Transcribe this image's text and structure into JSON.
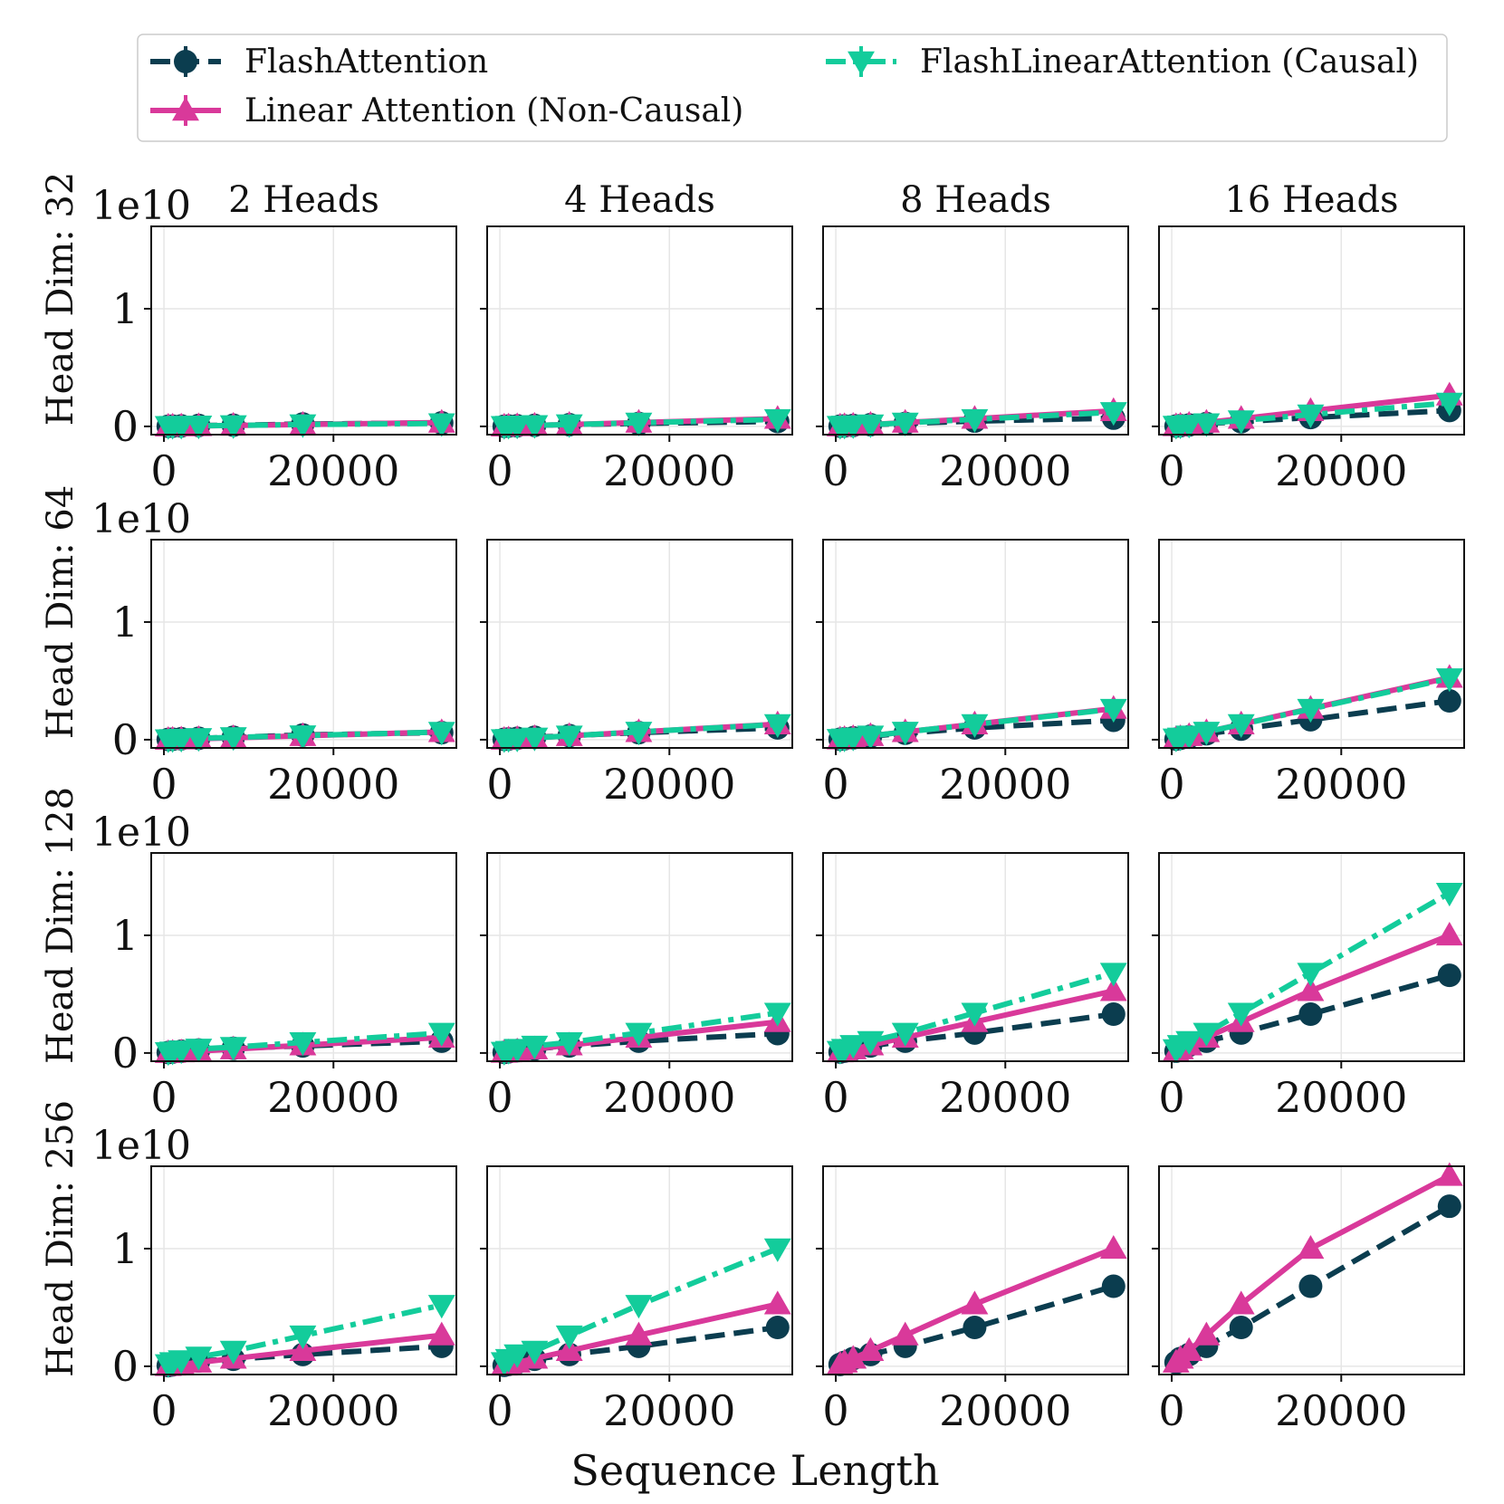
{
  "chart_data": {
    "type": "line",
    "layout": "4 rows x 4 columns of subplots",
    "xlabel": "Sequence Length",
    "y_scale_label": "1e10",
    "x_ticks": [
      0,
      20000
    ],
    "x_tick_labels": [
      "0",
      "20000"
    ],
    "y_ticks": [
      0,
      1
    ],
    "y_tick_labels": [
      "0",
      "1"
    ],
    "xlim": [
      -1500,
      34500
    ],
    "ylim": [
      -0.07,
      1.7
    ],
    "grid": true,
    "legend_position": "top",
    "col_titles": [
      "2 Heads",
      "4 Heads",
      "8 Heads",
      "16 Heads"
    ],
    "row_labels": [
      "Head Dim: 32",
      "Head Dim: 64",
      "Head Dim: 128",
      "Head Dim: 256"
    ],
    "x": [
      512,
      1024,
      2048,
      4096,
      8192,
      16384,
      32768
    ],
    "series": [
      {
        "key": "fa",
        "name": "FlashAttention",
        "color": "#0b3d4f",
        "marker": "circle",
        "dash": "dashed"
      },
      {
        "key": "la",
        "name": "Linear Attention (Non-Causal)",
        "color": "#d9399a",
        "marker": "triangle-up",
        "dash": "solid"
      },
      {
        "key": "fla",
        "name": "FlashLinearAttention (Causal)",
        "color": "#13cc9b",
        "marker": "triangle-down",
        "dash": "dashdot"
      }
    ],
    "panels": [
      [
        {
          "fa": [
            0.001,
            0.002,
            0.004,
            0.008,
            0.01,
            0.02,
            0.03
          ],
          "la": [
            0.0005,
            0.001,
            0.002,
            0.004,
            0.008,
            0.016,
            0.033
          ],
          "fla": [
            0.001,
            0.002,
            0.003,
            0.005,
            0.008,
            0.016,
            0.025
          ]
        },
        {
          "fa": [
            0.001,
            0.003,
            0.005,
            0.009,
            0.015,
            0.025,
            0.042
          ],
          "la": [
            0.001,
            0.002,
            0.004,
            0.008,
            0.016,
            0.033,
            0.066
          ],
          "fla": [
            0.001,
            0.003,
            0.005,
            0.009,
            0.016,
            0.03,
            0.06
          ]
        },
        {
          "fa": [
            0.002,
            0.004,
            0.008,
            0.015,
            0.025,
            0.045,
            0.07
          ],
          "la": [
            0.002,
            0.004,
            0.008,
            0.016,
            0.033,
            0.066,
            0.132
          ],
          "fla": [
            0.002,
            0.004,
            0.008,
            0.015,
            0.03,
            0.06,
            0.12
          ]
        },
        {
          "fa": [
            0.003,
            0.006,
            0.012,
            0.024,
            0.04,
            0.075,
            0.135
          ],
          "la": [
            0.004,
            0.008,
            0.016,
            0.033,
            0.066,
            0.132,
            0.264
          ],
          "fla": [
            0.003,
            0.006,
            0.012,
            0.025,
            0.05,
            0.1,
            0.2
          ]
        }
      ],
      [
        {
          "fa": [
            0.002,
            0.004,
            0.008,
            0.012,
            0.02,
            0.04,
            0.06
          ],
          "la": [
            0.001,
            0.002,
            0.004,
            0.008,
            0.016,
            0.033,
            0.066
          ],
          "fla": [
            0.001,
            0.003,
            0.006,
            0.012,
            0.02,
            0.035,
            0.065
          ]
        },
        {
          "fa": [
            0.003,
            0.006,
            0.012,
            0.02,
            0.035,
            0.06,
            0.1
          ],
          "la": [
            0.002,
            0.004,
            0.008,
            0.016,
            0.033,
            0.066,
            0.132
          ],
          "fla": [
            0.002,
            0.004,
            0.008,
            0.016,
            0.033,
            0.066,
            0.13
          ]
        },
        {
          "fa": [
            0.004,
            0.008,
            0.016,
            0.03,
            0.055,
            0.1,
            0.165
          ],
          "la": [
            0.004,
            0.008,
            0.016,
            0.033,
            0.066,
            0.132,
            0.264
          ],
          "fla": [
            0.004,
            0.008,
            0.016,
            0.033,
            0.066,
            0.13,
            0.26
          ]
        },
        {
          "fa": [
            0.005,
            0.012,
            0.025,
            0.05,
            0.09,
            0.17,
            0.33
          ],
          "la": [
            0.008,
            0.016,
            0.033,
            0.066,
            0.132,
            0.264,
            0.528
          ],
          "fla": [
            0.008,
            0.016,
            0.033,
            0.066,
            0.13,
            0.26,
            0.52
          ]
        }
      ],
      [
        {
          "fa": [
            0.004,
            0.008,
            0.015,
            0.025,
            0.04,
            0.06,
            0.1
          ],
          "la": [
            0.002,
            0.004,
            0.008,
            0.016,
            0.033,
            0.066,
            0.132
          ],
          "fla": [
            0.005,
            0.01,
            0.02,
            0.035,
            0.05,
            0.09,
            0.17
          ]
        },
        {
          "fa": [
            0.005,
            0.01,
            0.02,
            0.035,
            0.06,
            0.1,
            0.165
          ],
          "la": [
            0.004,
            0.008,
            0.016,
            0.033,
            0.066,
            0.132,
            0.264
          ],
          "fla": [
            0.008,
            0.016,
            0.033,
            0.06,
            0.09,
            0.17,
            0.34
          ]
        },
        {
          "fa": [
            0.008,
            0.016,
            0.033,
            0.06,
            0.1,
            0.17,
            0.33
          ],
          "la": [
            0.008,
            0.016,
            0.033,
            0.066,
            0.132,
            0.264,
            0.528
          ],
          "fla": [
            0.016,
            0.033,
            0.066,
            0.1,
            0.17,
            0.34,
            0.68
          ]
        },
        {
          "fa": [
            0.016,
            0.033,
            0.066,
            0.1,
            0.17,
            0.33,
            0.66
          ],
          "la": [
            0.016,
            0.033,
            0.066,
            0.132,
            0.264,
            0.528,
            1.0
          ],
          "fla": [
            0.03,
            0.066,
            0.1,
            0.17,
            0.34,
            0.68,
            1.36
          ]
        }
      ],
      [
        {
          "fa": [
            0.006,
            0.012,
            0.024,
            0.045,
            0.06,
            0.1,
            0.17
          ],
          "la": [
            0.004,
            0.008,
            0.016,
            0.033,
            0.066,
            0.132,
            0.264
          ],
          "fla": [
            0.016,
            0.033,
            0.05,
            0.08,
            0.13,
            0.26,
            0.52
          ]
        },
        {
          "fa": [
            0.008,
            0.016,
            0.033,
            0.06,
            0.1,
            0.17,
            0.33
          ],
          "la": [
            0.008,
            0.016,
            0.033,
            0.066,
            0.132,
            0.264,
            0.528
          ],
          "fla": [
            0.033,
            0.06,
            0.1,
            0.13,
            0.26,
            0.52,
            1.0
          ]
        },
        {
          "fa": [
            0.016,
            0.033,
            0.066,
            0.1,
            0.17,
            0.33,
            0.68
          ],
          "la": [
            0.016,
            0.033,
            0.066,
            0.132,
            0.264,
            0.528,
            1.0
          ]
        },
        {
          "fa": [
            0.033,
            0.066,
            0.1,
            0.17,
            0.33,
            0.68,
            1.36
          ],
          "la": [
            0.033,
            0.066,
            0.132,
            0.264,
            0.528,
            1.0,
            1.62
          ]
        }
      ]
    ]
  }
}
